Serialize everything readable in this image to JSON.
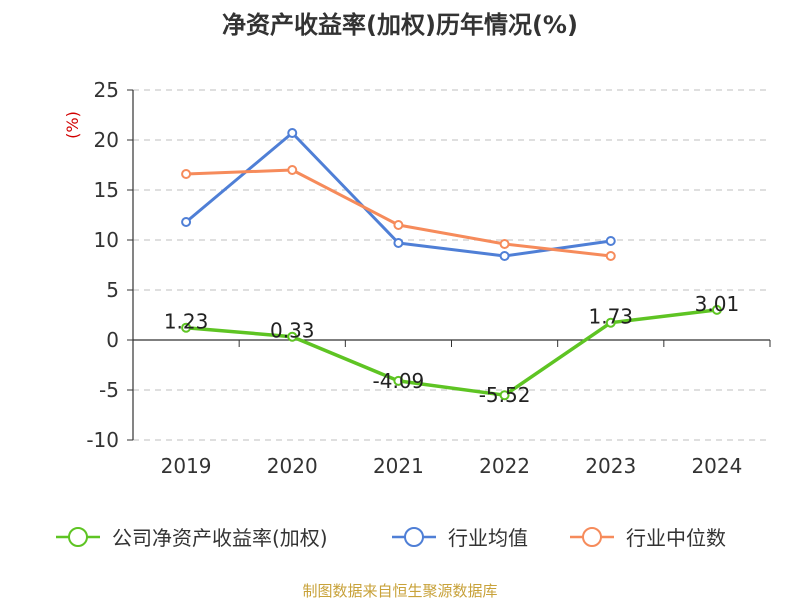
{
  "chart_data": {
    "type": "line",
    "title": "净资产收益率(加权)历年情况(%)",
    "ylabel": "(%)",
    "categories": [
      "2019",
      "2020",
      "2021",
      "2022",
      "2023",
      "2024"
    ],
    "ylim": [
      -10,
      25
    ],
    "yticks": [
      25,
      20,
      15,
      10,
      5,
      0,
      -5,
      -10
    ],
    "grid": true,
    "legend_position": "bottom",
    "series": [
      {
        "name": "公司净资产收益率(加权)",
        "color": "#5ec423",
        "values": [
          1.23,
          0.33,
          -4.09,
          -5.52,
          1.73,
          3.01
        ],
        "labels": [
          "1.23",
          "0.33",
          "-4.09",
          "-5.52",
          "1.73",
          "3.01"
        ]
      },
      {
        "name": "行业均值",
        "color": "#4f7fd6",
        "values": [
          11.8,
          20.7,
          9.7,
          8.4,
          9.9,
          null
        ]
      },
      {
        "name": "行业中位数",
        "color": "#f68b5b",
        "values": [
          16.6,
          17.0,
          11.5,
          9.6,
          8.4,
          null
        ]
      }
    ],
    "source": "制图数据来自恒生聚源数据库"
  }
}
